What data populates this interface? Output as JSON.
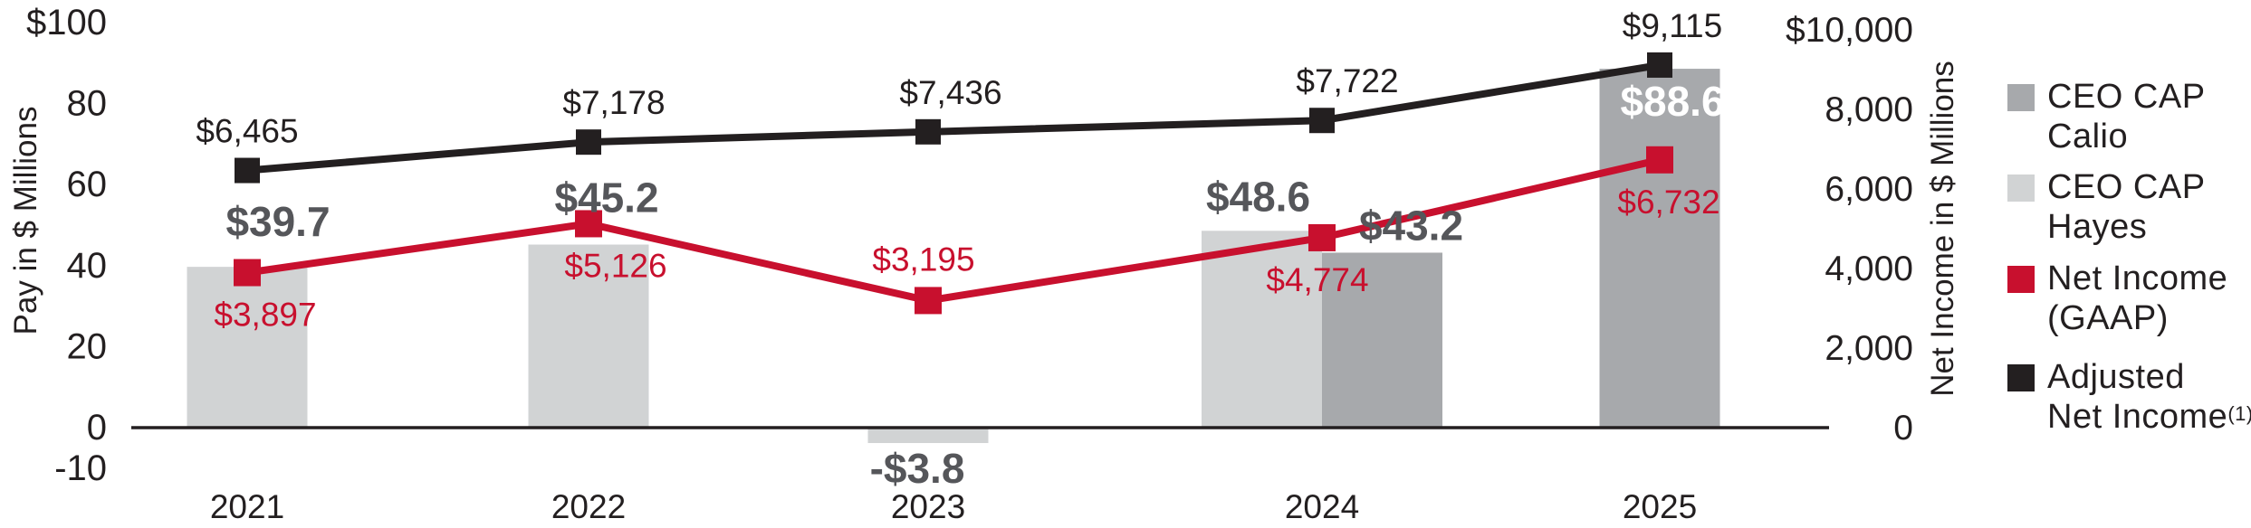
{
  "page": {
    "background": "#ffffff"
  },
  "chart_data": {
    "type": "bar+line",
    "categories": [
      "2021",
      "2022",
      "2023",
      "2024",
      "2025"
    ],
    "left_axis": {
      "label": "Pay in $ Millions",
      "tick_labels": [
        "$100",
        "80",
        "60",
        "40",
        "20",
        "0",
        "-10"
      ],
      "tick_values": [
        100,
        80,
        60,
        40,
        20,
        0,
        -10
      ],
      "range": [
        -10,
        100
      ]
    },
    "right_axis": {
      "label": "Net Income in $ Millions",
      "tick_labels": [
        "$10,000",
        "8,000",
        "6,000",
        "4,000",
        "2,000",
        "0"
      ],
      "tick_values": [
        10000,
        8000,
        6000,
        4000,
        2000,
        0
      ],
      "range": [
        0,
        10000
      ]
    },
    "bar_series": [
      {
        "name": "CEO CAP Calio",
        "color": "#a7a9ac",
        "axis": "left",
        "values": [
          null,
          null,
          null,
          43.2,
          88.6
        ],
        "labels": [
          null,
          null,
          null,
          "$43.2",
          "$88.6"
        ]
      },
      {
        "name": "CEO CAP Hayes",
        "color": "#d1d3d4",
        "axis": "left",
        "values": [
          39.7,
          45.2,
          -3.8,
          48.6,
          null
        ],
        "labels": [
          "$39.7",
          "$45.2",
          "-$3.8",
          "$48.6",
          null
        ]
      }
    ],
    "line_series": [
      {
        "name": "Net Income (GAAP)",
        "color": "#c8102e",
        "axis": "right",
        "values": [
          3897,
          5126,
          3195,
          4774,
          6732
        ],
        "labels": [
          "$3,897",
          "$5,126",
          "$3,195",
          "$4,774",
          "$6,732"
        ]
      },
      {
        "name": "Adjusted Net Income (1)",
        "color": "#231f20",
        "axis": "right",
        "values": [
          6465,
          7178,
          7436,
          7722,
          9115
        ],
        "labels": [
          "$6,465",
          "$7,178",
          "$7,436",
          "$7,722",
          "$9,115"
        ]
      }
    ],
    "grid": false,
    "legend_position": "right"
  },
  "legend": {
    "items": [
      {
        "line1": "CEO CAP",
        "line2": "Calio",
        "sup": "",
        "color": "#a7a9ac"
      },
      {
        "line1": "CEO CAP",
        "line2": "Hayes",
        "sup": "",
        "color": "#d1d3d4"
      },
      {
        "line1": "Net Income",
        "line2": "(GAAP)",
        "sup": "",
        "color": "#c8102e"
      },
      {
        "line1": "Adjusted",
        "line2": "Net Income",
        "sup": "(1)",
        "color": "#231f20"
      }
    ]
  },
  "styles": {
    "cap_label_color": "#55565a",
    "cap_label_inside_color": "#ffffff",
    "axis_text_color": "#231f20",
    "baseline_color": "#231f20"
  }
}
